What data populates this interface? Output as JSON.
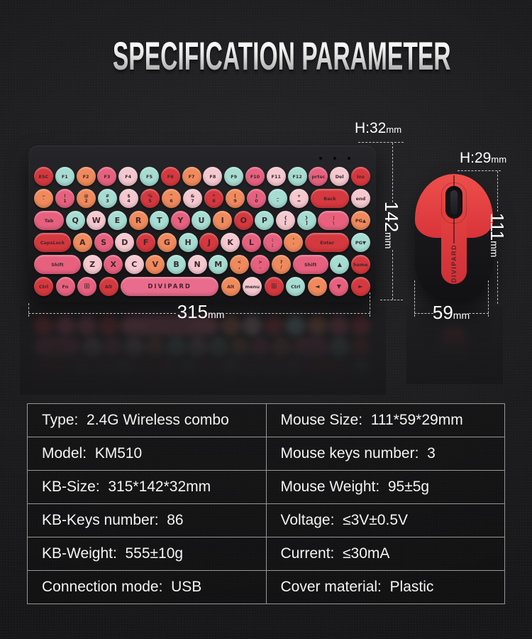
{
  "title": "SPECIFICATION PARAMETER",
  "keyboard": {
    "brand": "DIVIPARD",
    "dims": {
      "height": "H:32",
      "depth": "142",
      "width": "315",
      "unit": "mm"
    },
    "palette": {
      "red": "#d5383e",
      "rose": "#e7617f",
      "orange": "#f08a5c",
      "pink": "#f5c8cf",
      "mint": "#a6ddd3",
      "space": "#ea6c8d"
    },
    "rows": [
      [
        {
          "t": "ESC",
          "c": "red",
          "k": "mod"
        },
        {
          "t": "F1",
          "c": "mint",
          "k": "fk"
        },
        {
          "t": "F2",
          "c": "orange",
          "k": "fk"
        },
        {
          "t": "F3",
          "c": "rose",
          "k": "fk"
        },
        {
          "t": "F4",
          "c": "pink",
          "k": "fk"
        },
        {
          "t": "F5",
          "c": "mint",
          "k": "fk"
        },
        {
          "t": "F6",
          "c": "red",
          "k": "fk"
        },
        {
          "t": "F7",
          "c": "orange",
          "k": "fk"
        },
        {
          "t": "F8",
          "c": "pink",
          "k": "fk"
        },
        {
          "t": "F9",
          "c": "mint",
          "k": "fk"
        },
        {
          "t": "F10",
          "c": "rose",
          "k": "fk"
        },
        {
          "t": "F11",
          "c": "pink",
          "k": "fk"
        },
        {
          "t": "F12",
          "c": "mint",
          "k": "fk"
        },
        {
          "t": "prtsc",
          "c": "rose",
          "k": "mod"
        },
        {
          "t": "Del",
          "c": "pink",
          "k": "mod"
        },
        {
          "t": "Ins",
          "c": "red",
          "k": "mod"
        }
      ],
      [
        {
          "t": "~\n`",
          "c": "orange",
          "k": "sym"
        },
        {
          "t": "!\n1",
          "c": "rose",
          "k": "sym"
        },
        {
          "t": "@\n2",
          "c": "orange",
          "k": "sym"
        },
        {
          "t": "#\n3",
          "c": "mint",
          "k": "sym"
        },
        {
          "t": "$\n4",
          "c": "pink",
          "k": "sym"
        },
        {
          "t": "%\n5",
          "c": "red",
          "k": "sym"
        },
        {
          "t": "^\n6",
          "c": "orange",
          "k": "sym"
        },
        {
          "t": "&\n7",
          "c": "pink",
          "k": "sym"
        },
        {
          "t": "*\n8",
          "c": "red",
          "k": "sym"
        },
        {
          "t": "(\n9",
          "c": "orange",
          "k": "sym"
        },
        {
          "t": ")\n0",
          "c": "rose",
          "k": "sym"
        },
        {
          "t": "_\n-",
          "c": "mint",
          "k": "sym"
        },
        {
          "t": "+\n=",
          "c": "pink",
          "k": "sym"
        },
        {
          "t": "Back",
          "c": "red",
          "k": "mod",
          "w": 54
        },
        {
          "t": "end",
          "c": "pink",
          "k": "mod"
        }
      ],
      [
        {
          "t": "Tab",
          "c": "rose",
          "k": "mod",
          "w": 42
        },
        {
          "t": "Q",
          "c": "mint",
          "k": "ltr"
        },
        {
          "t": "W",
          "c": "pink",
          "k": "ltr"
        },
        {
          "t": "E",
          "c": "mint",
          "k": "ltr"
        },
        {
          "t": "R",
          "c": "orange",
          "k": "ltr"
        },
        {
          "t": "T",
          "c": "mint",
          "k": "ltr"
        },
        {
          "t": "Y",
          "c": "rose",
          "k": "ltr"
        },
        {
          "t": "U",
          "c": "mint",
          "k": "ltr"
        },
        {
          "t": "I",
          "c": "orange",
          "k": "ltr"
        },
        {
          "t": "O",
          "c": "red",
          "k": "ltr"
        },
        {
          "t": "P",
          "c": "mint",
          "k": "ltr"
        },
        {
          "t": "{\n[",
          "c": "pink",
          "k": "sym"
        },
        {
          "t": "}\n]",
          "c": "mint",
          "k": "sym"
        },
        {
          "t": "|\n\\",
          "c": "rose",
          "k": "sym",
          "w": 44
        },
        {
          "t": "PG▲",
          "c": "orange",
          "k": "mod"
        }
      ],
      [
        {
          "t": "CapsLock",
          "c": "red",
          "k": "mod",
          "w": 52
        },
        {
          "t": "A",
          "c": "orange",
          "k": "ltr"
        },
        {
          "t": "S",
          "c": "rose",
          "k": "ltr"
        },
        {
          "t": "D",
          "c": "pink",
          "k": "ltr"
        },
        {
          "t": "F",
          "c": "red",
          "k": "ltr"
        },
        {
          "t": "G",
          "c": "orange",
          "k": "ltr"
        },
        {
          "t": "H",
          "c": "mint",
          "k": "ltr"
        },
        {
          "t": "J",
          "c": "red",
          "k": "ltr"
        },
        {
          "t": "K",
          "c": "pink",
          "k": "ltr"
        },
        {
          "t": "L",
          "c": "rose",
          "k": "ltr"
        },
        {
          "t": ":\n;",
          "c": "rose",
          "k": "sym"
        },
        {
          "t": "\"\n'",
          "c": "orange",
          "k": "sym"
        },
        {
          "t": "Enter",
          "c": "red",
          "k": "mod",
          "w": 62
        },
        {
          "t": "PG▼",
          "c": "mint",
          "k": "mod"
        }
      ],
      [
        {
          "t": "Shift",
          "c": "rose",
          "k": "mod",
          "w": 66
        },
        {
          "t": "Z",
          "c": "pink",
          "k": "ltr"
        },
        {
          "t": "X",
          "c": "rose",
          "k": "ltr"
        },
        {
          "t": "C",
          "c": "pink",
          "k": "ltr"
        },
        {
          "t": "V",
          "c": "orange",
          "k": "ltr"
        },
        {
          "t": "B",
          "c": "mint",
          "k": "ltr"
        },
        {
          "t": "N",
          "c": "pink",
          "k": "ltr"
        },
        {
          "t": "M",
          "c": "mint",
          "k": "ltr"
        },
        {
          "t": "<\n,",
          "c": "orange",
          "k": "sym"
        },
        {
          "t": ">\n.",
          "c": "rose",
          "k": "sym"
        },
        {
          "t": "?\n/",
          "c": "orange",
          "k": "sym"
        },
        {
          "t": "Shift",
          "c": "rose",
          "k": "mod",
          "w": 50
        },
        {
          "t": "▲",
          "c": "mint",
          "k": "arw"
        },
        {
          "t": "home",
          "c": "red",
          "k": "mod"
        }
      ],
      [
        {
          "t": "Ctrl",
          "c": "red",
          "k": "mod"
        },
        {
          "t": "Fn",
          "c": "rose",
          "k": "mod"
        },
        {
          "t": "⊞",
          "c": "rose",
          "k": "win"
        },
        {
          "t": "Alt",
          "c": "red",
          "k": "mod"
        },
        {
          "t": "DIVIPARD",
          "c": "space",
          "k": "spc",
          "w": 138
        },
        {
          "t": "Alt",
          "c": "orange",
          "k": "mod"
        },
        {
          "t": "menu",
          "c": "pink",
          "k": "mod"
        },
        {
          "t": "⊞",
          "c": "red",
          "k": "win"
        },
        {
          "t": "Ctrl",
          "c": "mint",
          "k": "mod"
        },
        {
          "t": "◄",
          "c": "orange",
          "k": "arw"
        },
        {
          "t": "▼",
          "c": "rose",
          "k": "arw"
        },
        {
          "t": "►",
          "c": "red",
          "k": "arw"
        }
      ]
    ]
  },
  "mouse": {
    "brand": "DIVIPARD",
    "dims": {
      "height": "H:29",
      "length": "111",
      "width": "59",
      "unit": "mm"
    }
  },
  "spec_table": {
    "rows": [
      {
        "left": "Type:  2.4G Wireless combo",
        "right": "Mouse Size:  111*59*29mm"
      },
      {
        "left": "Model:  KM510",
        "right": "Mouse keys number:  3"
      },
      {
        "left": "KB-Size:  315*142*32mm",
        "right": "Mouse Weight:  95±5g"
      },
      {
        "left": "KB-Keys number:  86",
        "right": "Voltage:  ≤3V±0.5V"
      },
      {
        "left": "KB-Weight:  555±10g",
        "right": "Current:  ≤30mA"
      },
      {
        "left": "Connection mode:  USB",
        "right": "Cover material:  Plastic"
      }
    ]
  }
}
